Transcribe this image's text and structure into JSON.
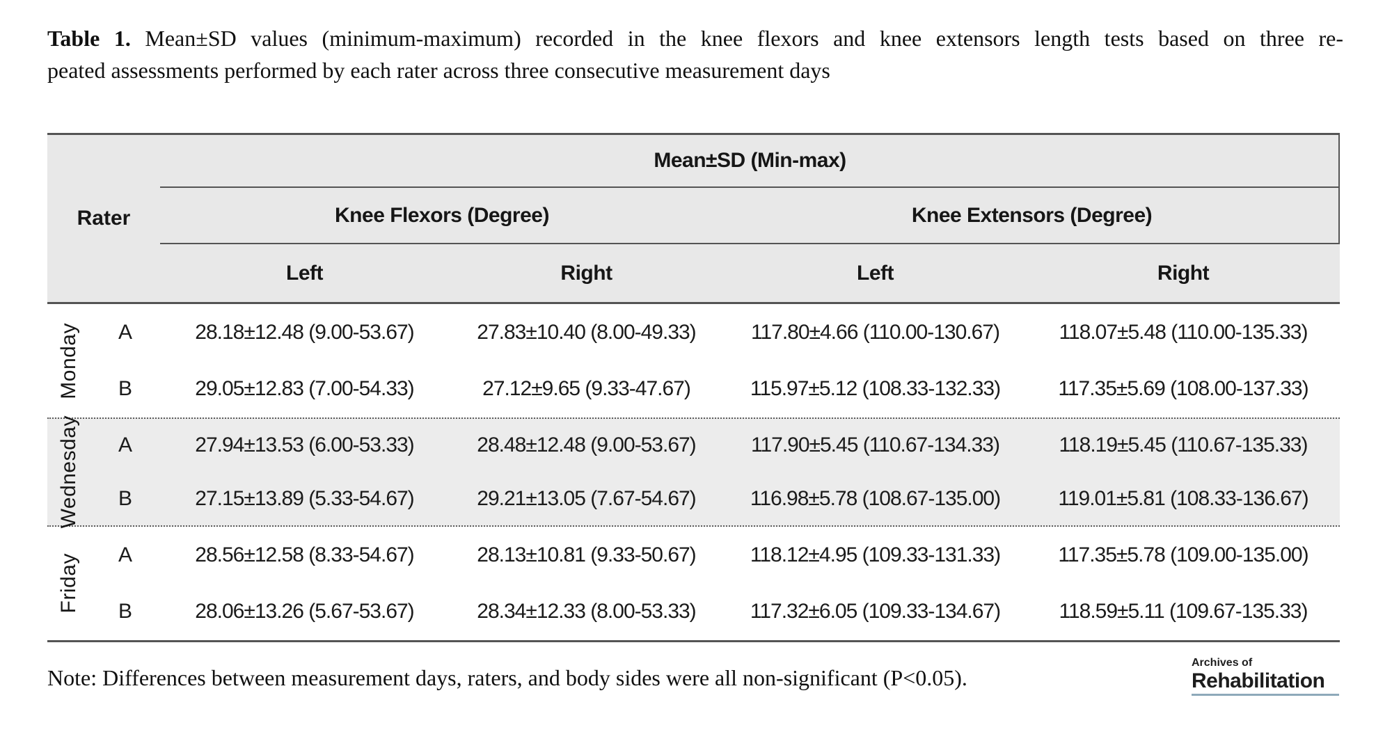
{
  "caption": {
    "label": "Table 1.",
    "line1_rest": "Mean±SD values (minimum-maximum) recorded in the knee flexors and knee extensors length tests based on three re-",
    "line2": "peated assessments performed by each rater across three consecutive measurement days"
  },
  "table": {
    "header": {
      "rater": "Rater",
      "span_top": "Mean±SD (Min-max)",
      "groups": [
        {
          "label": "Knee Flexors (Degree)"
        },
        {
          "label": "Knee Extensors (Degree)"
        }
      ],
      "sides": [
        "Left",
        "Right",
        "Left",
        "Right"
      ]
    },
    "days": [
      {
        "day": "Monday",
        "rows": [
          {
            "rater": "A",
            "values": [
              "28.18±12.48 (9.00-53.67)",
              "27.83±10.40 (8.00-49.33)",
              "117.80±4.66 (110.00-130.67)",
              "118.07±5.48 (110.00-135.33)"
            ]
          },
          {
            "rater": "B",
            "values": [
              "29.05±12.83 (7.00-54.33)",
              "27.12±9.65 (9.33-47.67)",
              "115.97±5.12 (108.33-132.33)",
              "117.35±5.69 (108.00-137.33)"
            ]
          }
        ]
      },
      {
        "day": "Wednesday",
        "rows": [
          {
            "rater": "A",
            "values": [
              "27.94±13.53 (6.00-53.33)",
              "28.48±12.48 (9.00-53.67)",
              "117.90±5.45 (110.67-134.33)",
              "118.19±5.45 (110.67-135.33)"
            ]
          },
          {
            "rater": "B",
            "values": [
              "27.15±13.89 (5.33-54.67)",
              "29.21±13.05 (7.67-54.67)",
              "116.98±5.78 (108.67-135.00)",
              "119.01±5.81 (108.33-136.67)"
            ]
          }
        ]
      },
      {
        "day": "Friday",
        "rows": [
          {
            "rater": "A",
            "values": [
              "28.56±12.58 (8.33-54.67)",
              "28.13±10.81 (9.33-50.67)",
              "118.12±4.95 (109.33-131.33)",
              "117.35±5.78 (109.00-135.00)"
            ]
          },
          {
            "rater": "B",
            "values": [
              "28.06±13.26 (5.67-53.67)",
              "28.34±12.33 (8.00-53.33)",
              "117.32±6.05 (109.33-134.67)",
              "118.59±5.11 (109.67-135.33)"
            ]
          }
        ]
      }
    ]
  },
  "note": "Note: Differences between measurement days, raters, and body sides were all non-significant (P<0.05).",
  "logo": {
    "top": "Archives of",
    "bottom": "Rehabilitation"
  },
  "colors": {
    "table_border": "#545454",
    "header_bg": "#e8e8e8",
    "band_alt_bg": "#ececec",
    "logo_underline": "#8ea9ba"
  }
}
